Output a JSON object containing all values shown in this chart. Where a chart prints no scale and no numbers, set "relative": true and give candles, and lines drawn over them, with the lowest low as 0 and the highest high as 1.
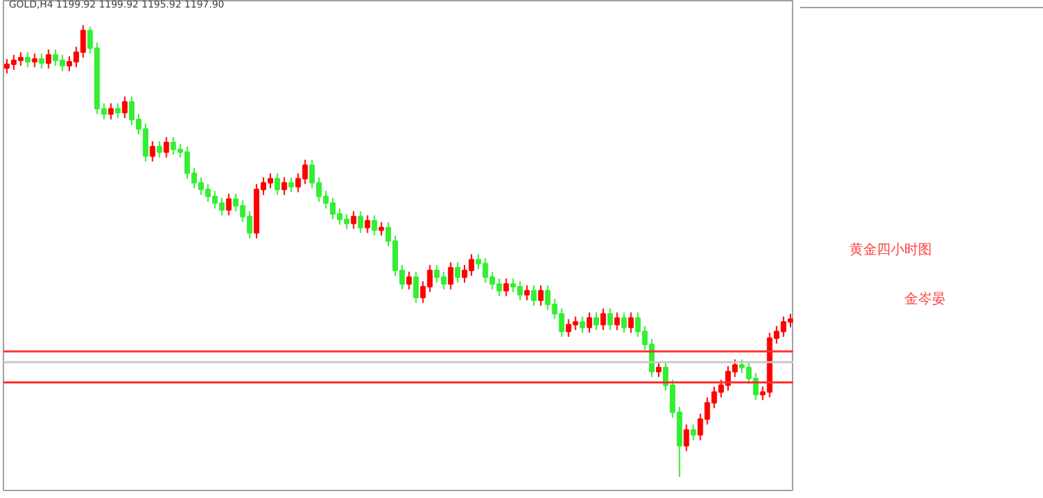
{
  "chart_data": {
    "type": "candlestick",
    "relative": true,
    "title": "GOLD,H4 1199.92 1199.92 1195.92 1197.90",
    "annotations": [
      "黄金四小时图",
      "金岑晏"
    ],
    "categories": [
      null,
      null,
      null,
      null,
      null,
      null,
      null,
      null,
      null,
      null,
      null,
      null,
      null,
      null,
      null,
      null,
      null,
      null,
      null,
      null,
      null,
      null,
      null,
      null,
      null,
      null,
      null,
      null,
      null,
      null,
      null,
      null,
      null,
      null,
      null,
      null,
      null,
      null,
      null,
      null,
      null,
      null,
      null,
      null,
      null,
      null,
      null,
      null,
      null,
      null,
      null,
      null,
      null,
      null,
      null,
      null,
      null,
      null,
      null,
      null,
      null,
      null,
      null,
      null,
      null,
      null,
      null,
      null,
      null,
      null,
      null,
      null,
      null,
      null,
      null,
      null,
      null,
      null,
      null,
      null,
      null,
      null,
      null,
      null,
      null,
      null,
      null,
      null,
      null,
      null,
      null,
      null,
      null,
      null,
      null,
      null,
      null,
      null,
      null,
      null,
      null,
      null,
      null,
      null,
      null,
      null,
      null,
      null,
      null,
      null,
      null,
      null,
      null,
      null
    ],
    "ohlc": [
      [
        0.905,
        0.925,
        0.893,
        0.913
      ],
      [
        0.913,
        0.934,
        0.901,
        0.922
      ],
      [
        0.922,
        0.94,
        0.91,
        0.928
      ],
      [
        0.928,
        0.94,
        0.907,
        0.919
      ],
      [
        0.919,
        0.937,
        0.907,
        0.925
      ],
      [
        0.925,
        0.937,
        0.904,
        0.916
      ],
      [
        0.916,
        0.946,
        0.904,
        0.934
      ],
      [
        0.934,
        0.946,
        0.91,
        0.922
      ],
      [
        0.922,
        0.934,
        0.898,
        0.91
      ],
      [
        0.91,
        0.931,
        0.898,
        0.919
      ],
      [
        0.919,
        0.952,
        0.907,
        0.94
      ],
      [
        0.94,
        1.0,
        0.928,
        0.988
      ],
      [
        0.988,
        0.996,
        0.937,
        0.949
      ],
      [
        0.949,
        0.961,
        0.803,
        0.815
      ],
      [
        0.815,
        0.827,
        0.791,
        0.803
      ],
      [
        0.803,
        0.827,
        0.791,
        0.815
      ],
      [
        0.815,
        0.827,
        0.794,
        0.806
      ],
      [
        0.806,
        0.842,
        0.794,
        0.83
      ],
      [
        0.83,
        0.842,
        0.779,
        0.791
      ],
      [
        0.791,
        0.803,
        0.758,
        0.77
      ],
      [
        0.77,
        0.782,
        0.698,
        0.71
      ],
      [
        0.71,
        0.743,
        0.698,
        0.731
      ],
      [
        0.731,
        0.743,
        0.707,
        0.719
      ],
      [
        0.719,
        0.752,
        0.707,
        0.74
      ],
      [
        0.74,
        0.752,
        0.713,
        0.725
      ],
      [
        0.725,
        0.737,
        0.707,
        0.719
      ],
      [
        0.719,
        0.731,
        0.66,
        0.672
      ],
      [
        0.672,
        0.684,
        0.639,
        0.651
      ],
      [
        0.651,
        0.663,
        0.624,
        0.636
      ],
      [
        0.636,
        0.648,
        0.609,
        0.621
      ],
      [
        0.621,
        0.633,
        0.594,
        0.606
      ],
      [
        0.606,
        0.618,
        0.579,
        0.591
      ],
      [
        0.591,
        0.627,
        0.579,
        0.615
      ],
      [
        0.615,
        0.627,
        0.588,
        0.6
      ],
      [
        0.6,
        0.612,
        0.564,
        0.576
      ],
      [
        0.576,
        0.588,
        0.528,
        0.54
      ],
      [
        0.54,
        0.648,
        0.528,
        0.636
      ],
      [
        0.636,
        0.663,
        0.624,
        0.651
      ],
      [
        0.651,
        0.672,
        0.639,
        0.66
      ],
      [
        0.66,
        0.672,
        0.624,
        0.636
      ],
      [
        0.636,
        0.663,
        0.624,
        0.651
      ],
      [
        0.651,
        0.663,
        0.63,
        0.642
      ],
      [
        0.642,
        0.672,
        0.63,
        0.66
      ],
      [
        0.66,
        0.702,
        0.648,
        0.69
      ],
      [
        0.69,
        0.702,
        0.639,
        0.651
      ],
      [
        0.651,
        0.663,
        0.609,
        0.621
      ],
      [
        0.621,
        0.633,
        0.594,
        0.606
      ],
      [
        0.606,
        0.618,
        0.57,
        0.582
      ],
      [
        0.582,
        0.594,
        0.558,
        0.57
      ],
      [
        0.57,
        0.582,
        0.549,
        0.561
      ],
      [
        0.561,
        0.588,
        0.549,
        0.576
      ],
      [
        0.576,
        0.588,
        0.54,
        0.552
      ],
      [
        0.552,
        0.579,
        0.54,
        0.567
      ],
      [
        0.567,
        0.579,
        0.534,
        0.546
      ],
      [
        0.546,
        0.564,
        0.534,
        0.552
      ],
      [
        0.552,
        0.564,
        0.51,
        0.522
      ],
      [
        0.522,
        0.534,
        0.445,
        0.457
      ],
      [
        0.457,
        0.469,
        0.415,
        0.427
      ],
      [
        0.427,
        0.454,
        0.415,
        0.442
      ],
      [
        0.442,
        0.454,
        0.385,
        0.397
      ],
      [
        0.397,
        0.433,
        0.385,
        0.421
      ],
      [
        0.421,
        0.469,
        0.409,
        0.457
      ],
      [
        0.457,
        0.469,
        0.43,
        0.442
      ],
      [
        0.442,
        0.454,
        0.415,
        0.427
      ],
      [
        0.427,
        0.475,
        0.415,
        0.463
      ],
      [
        0.463,
        0.475,
        0.43,
        0.442
      ],
      [
        0.442,
        0.469,
        0.43,
        0.457
      ],
      [
        0.457,
        0.493,
        0.445,
        0.481
      ],
      [
        0.481,
        0.493,
        0.46,
        0.472
      ],
      [
        0.472,
        0.484,
        0.43,
        0.442
      ],
      [
        0.442,
        0.454,
        0.415,
        0.427
      ],
      [
        0.427,
        0.439,
        0.4,
        0.412
      ],
      [
        0.412,
        0.439,
        0.4,
        0.427
      ],
      [
        0.427,
        0.439,
        0.409,
        0.421
      ],
      [
        0.421,
        0.433,
        0.391,
        0.403
      ],
      [
        0.403,
        0.424,
        0.391,
        0.412
      ],
      [
        0.412,
        0.424,
        0.379,
        0.391
      ],
      [
        0.391,
        0.424,
        0.379,
        0.412
      ],
      [
        0.412,
        0.424,
        0.37,
        0.382
      ],
      [
        0.382,
        0.394,
        0.349,
        0.361
      ],
      [
        0.361,
        0.373,
        0.31,
        0.322
      ],
      [
        0.322,
        0.349,
        0.31,
        0.337
      ],
      [
        0.337,
        0.355,
        0.325,
        0.343
      ],
      [
        0.343,
        0.355,
        0.319,
        0.331
      ],
      [
        0.331,
        0.364,
        0.319,
        0.352
      ],
      [
        0.352,
        0.364,
        0.325,
        0.337
      ],
      [
        0.337,
        0.373,
        0.325,
        0.361
      ],
      [
        0.361,
        0.373,
        0.325,
        0.337
      ],
      [
        0.337,
        0.364,
        0.325,
        0.352
      ],
      [
        0.352,
        0.364,
        0.319,
        0.331
      ],
      [
        0.331,
        0.364,
        0.319,
        0.352
      ],
      [
        0.352,
        0.364,
        0.31,
        0.322
      ],
      [
        0.322,
        0.334,
        0.281,
        0.293
      ],
      [
        0.293,
        0.305,
        0.221,
        0.233
      ],
      [
        0.233,
        0.254,
        0.221,
        0.242
      ],
      [
        0.242,
        0.254,
        0.191,
        0.203
      ],
      [
        0.203,
        0.215,
        0.131,
        0.143
      ],
      [
        0.143,
        0.155,
        0.0,
        0.069
      ],
      [
        0.069,
        0.116,
        0.057,
        0.104
      ],
      [
        0.104,
        0.116,
        0.081,
        0.093
      ],
      [
        0.093,
        0.14,
        0.081,
        0.128
      ],
      [
        0.128,
        0.176,
        0.116,
        0.164
      ],
      [
        0.164,
        0.2,
        0.152,
        0.188
      ],
      [
        0.188,
        0.215,
        0.176,
        0.203
      ],
      [
        0.203,
        0.245,
        0.191,
        0.233
      ],
      [
        0.233,
        0.26,
        0.221,
        0.248
      ],
      [
        0.248,
        0.26,
        0.23,
        0.242
      ],
      [
        0.242,
        0.254,
        0.206,
        0.218
      ],
      [
        0.218,
        0.23,
        0.17,
        0.182
      ],
      [
        0.182,
        0.2,
        0.17,
        0.188
      ],
      [
        0.188,
        0.319,
        0.176,
        0.307
      ],
      [
        0.307,
        0.334,
        0.295,
        0.322
      ],
      [
        0.322,
        0.355,
        0.31,
        0.343
      ],
      [
        0.343,
        0.361,
        0.331,
        0.349
      ]
    ],
    "colors": [
      "#ff0000",
      "#ff0000",
      "#ff0000",
      "#33ee33",
      "#ff0000",
      "#33ee33",
      "#ff0000",
      "#33ee33",
      "#33ee33",
      "#ff0000",
      "#ff0000",
      "#ff0000",
      "#33ee33",
      "#33ee33",
      "#33ee33",
      "#ff0000",
      "#33ee33",
      "#ff0000",
      "#33ee33",
      "#33ee33",
      "#33ee33",
      "#ff0000",
      "#33ee33",
      "#ff0000",
      "#33ee33",
      "#33ee33",
      "#33ee33",
      "#33ee33",
      "#33ee33",
      "#33ee33",
      "#33ee33",
      "#33ee33",
      "#ff0000",
      "#33ee33",
      "#33ee33",
      "#33ee33",
      "#ff0000",
      "#ff0000",
      "#ff0000",
      "#33ee33",
      "#ff0000",
      "#33ee33",
      "#ff0000",
      "#ff0000",
      "#33ee33",
      "#33ee33",
      "#33ee33",
      "#33ee33",
      "#33ee33",
      "#33ee33",
      "#ff0000",
      "#33ee33",
      "#ff0000",
      "#33ee33",
      "#ff0000",
      "#33ee33",
      "#33ee33",
      "#33ee33",
      "#ff0000",
      "#33ee33",
      "#ff0000",
      "#ff0000",
      "#33ee33",
      "#33ee33",
      "#ff0000",
      "#33ee33",
      "#ff0000",
      "#ff0000",
      "#33ee33",
      "#33ee33",
      "#33ee33",
      "#33ee33",
      "#ff0000",
      "#33ee33",
      "#33ee33",
      "#ff0000",
      "#33ee33",
      "#ff0000",
      "#33ee33",
      "#33ee33",
      "#33ee33",
      "#ff0000",
      "#ff0000",
      "#33ee33",
      "#ff0000",
      "#33ee33",
      "#ff0000",
      "#33ee33",
      "#ff0000",
      "#33ee33",
      "#ff0000",
      "#33ee33",
      "#33ee33",
      "#33ee33",
      "#ff0000",
      "#33ee33",
      "#33ee33",
      "#33ee33",
      "#ff0000",
      "#33ee33",
      "#ff0000",
      "#ff0000",
      "#ff0000",
      "#ff0000",
      "#ff0000",
      "#ff0000",
      "#33ee33",
      "#33ee33",
      "#33ee33",
      "#ff0000",
      "#ff0000",
      "#ff0000",
      "#ff0000",
      "#ff0000"
    ],
    "ref_lines": [
      {
        "axis": "y",
        "value": 0.278,
        "color": "#ff3030"
      },
      {
        "axis": "y",
        "value": 0.254,
        "color": "#c8c8c8"
      },
      {
        "axis": "y",
        "value": 0.209,
        "color": "#ff3030"
      }
    ],
    "grid": false
  }
}
